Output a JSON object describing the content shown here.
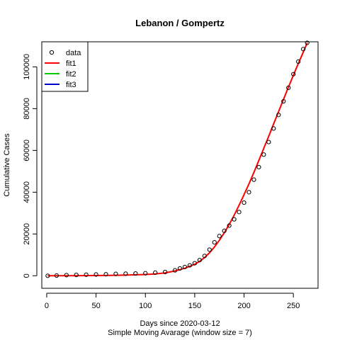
{
  "chart_data": {
    "type": "scatter",
    "title": "Lebanon / Gompertz",
    "xlabel": "Days since 2020-03-12",
    "xlabel2": "Simple Moving Avarage (window size = 7)",
    "ylabel": "Cumulative Cases",
    "xlim": [
      -5,
      275
    ],
    "ylim": [
      -6000,
      112000
    ],
    "xticks": [
      0,
      50,
      100,
      150,
      200,
      250
    ],
    "yticks": [
      0,
      20000,
      40000,
      60000,
      80000,
      100000
    ],
    "legend": {
      "position": "top-left",
      "entries": [
        {
          "label": "data",
          "kind": "point",
          "color": "#000000"
        },
        {
          "label": "fit1",
          "kind": "line",
          "color": "#ff0000"
        },
        {
          "label": "fit2",
          "kind": "line",
          "color": "#00cc00"
        },
        {
          "label": "fit3",
          "kind": "line",
          "color": "#0000cc"
        }
      ]
    },
    "series": [
      {
        "name": "data",
        "marker": "open-circle",
        "color": "#000000",
        "x": [
          1,
          10,
          20,
          30,
          40,
          50,
          60,
          70,
          80,
          90,
          100,
          110,
          120,
          130,
          135,
          140,
          145,
          150,
          155,
          160,
          165,
          170,
          175,
          180,
          185,
          190,
          195,
          200,
          205,
          210,
          215,
          220,
          225,
          230,
          235,
          240,
          245,
          250,
          255,
          260,
          264
        ],
        "y": [
          0,
          100,
          300,
          400,
          500,
          600,
          700,
          900,
          1000,
          1100,
          1200,
          1500,
          1800,
          2600,
          3500,
          4200,
          5000,
          6000,
          7500,
          9500,
          12500,
          16000,
          19000,
          21500,
          24000,
          27000,
          30500,
          35000,
          40000,
          46000,
          52000,
          58000,
          64000,
          70500,
          77000,
          83500,
          90000,
          96500,
          102500,
          108500,
          111500
        ]
      },
      {
        "name": "fit1",
        "color": "#ff0000",
        "x": [
          1,
          20,
          40,
          60,
          80,
          100,
          110,
          120,
          130,
          140,
          150,
          155,
          160,
          165,
          170,
          175,
          180,
          185,
          190,
          195,
          200,
          205,
          210,
          215,
          220,
          225,
          230,
          235,
          240,
          245,
          250,
          255,
          260,
          264
        ],
        "y": [
          0,
          20,
          60,
          150,
          300,
          600,
          900,
          1400,
          2300,
          3600,
          5500,
          6900,
          8700,
          11000,
          13800,
          17000,
          20600,
          24600,
          29000,
          33800,
          38800,
          44000,
          49500,
          55200,
          61000,
          66800,
          72700,
          78600,
          84500,
          90300,
          96000,
          101600,
          107000,
          111500
        ]
      }
    ]
  }
}
